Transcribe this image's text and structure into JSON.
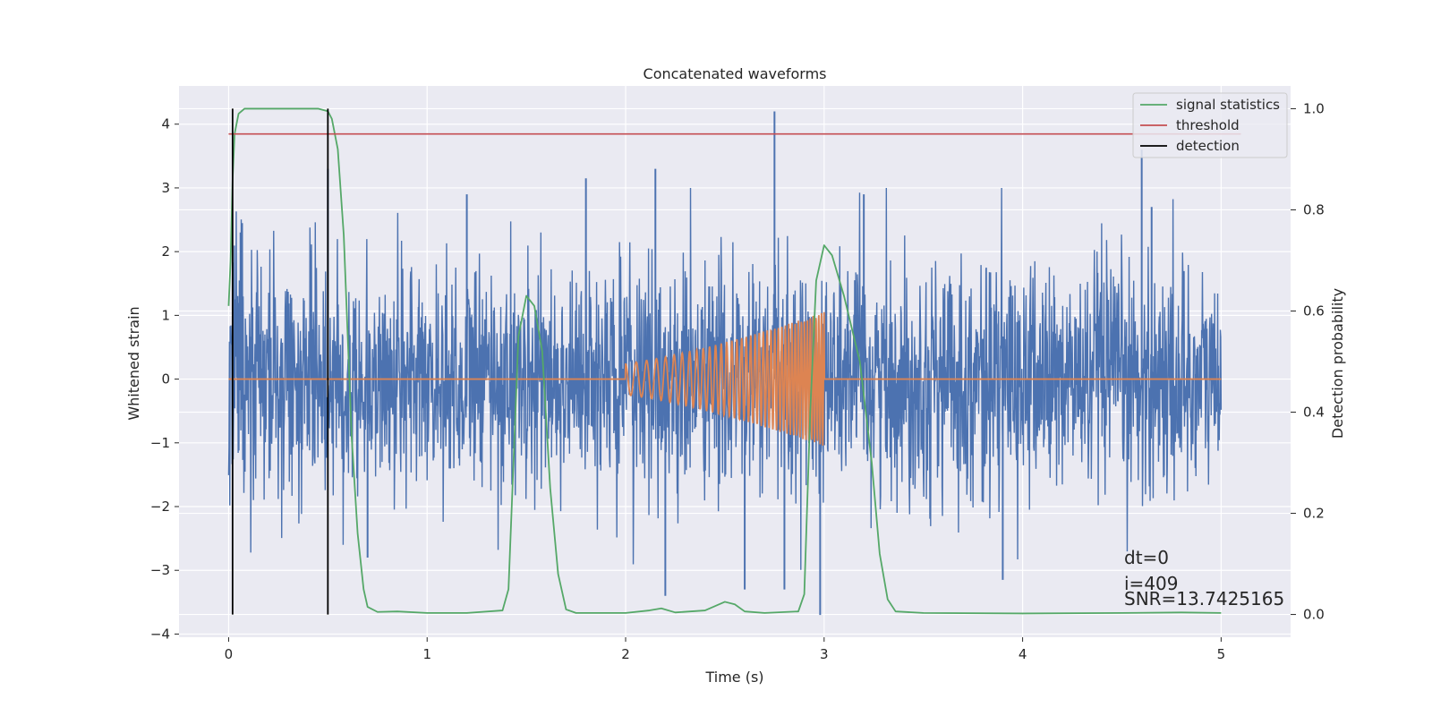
{
  "chart_data": {
    "type": "line",
    "title": "Concatenated waveforms",
    "xlabel": "Time (s)",
    "ylabel": "Whitened strain",
    "ylabel_right": "Detection probability",
    "xlim": [
      -0.25,
      5.35
    ],
    "ylim": [
      -4.05,
      4.6
    ],
    "ylim_right": [
      -0.045,
      1.045
    ],
    "x_ticks": [
      0,
      1,
      2,
      3,
      4,
      5
    ],
    "y_ticks": [
      -4,
      -3,
      -2,
      -1,
      0,
      1,
      2,
      3,
      4
    ],
    "y_ticks_right": [
      0.0,
      0.2,
      0.4,
      0.6,
      0.8,
      1.0
    ],
    "grid": true,
    "legend_position": "top-right",
    "series": [
      {
        "name": "",
        "axis": "left",
        "color": "#4c72b0",
        "kind": "noise",
        "x_range": [
          0,
          5
        ],
        "std": 0.9,
        "spikes": [
          {
            "x": 0.06,
            "y": 2.3
          },
          {
            "x": 0.5,
            "y": 3.3
          },
          {
            "x": 1.2,
            "y": 2.9
          },
          {
            "x": 1.8,
            "y": 3.15
          },
          {
            "x": 2.15,
            "y": 3.3
          },
          {
            "x": 2.75,
            "y": 4.2
          },
          {
            "x": 2.6,
            "y": -3.3
          },
          {
            "x": 2.8,
            "y": -3.3
          },
          {
            "x": 2.98,
            "y": -3.7
          },
          {
            "x": 3.2,
            "y": 2.9
          },
          {
            "x": 3.9,
            "y": -3.15
          },
          {
            "x": 4.6,
            "y": 3.6
          },
          {
            "x": 4.65,
            "y": 2.7
          },
          {
            "x": 0.7,
            "y": -2.8
          },
          {
            "x": 2.2,
            "y": -3.4
          }
        ]
      },
      {
        "name": "",
        "axis": "left",
        "color": "#dd8452",
        "kind": "chirp",
        "x_range": [
          0,
          5
        ],
        "chirp_start": 2.0,
        "chirp_end": 3.0,
        "amp_start": 0.25,
        "amp_end": 1.05,
        "freq_start": 18,
        "freq_end": 75
      },
      {
        "name": "signal statistics",
        "axis": "right",
        "color": "#55a868",
        "points": [
          [
            0.0,
            0.61
          ],
          [
            0.01,
            0.7
          ],
          [
            0.02,
            0.86
          ],
          [
            0.03,
            0.95
          ],
          [
            0.05,
            0.99
          ],
          [
            0.08,
            1.0
          ],
          [
            0.45,
            1.0
          ],
          [
            0.5,
            0.995
          ],
          [
            0.52,
            0.98
          ],
          [
            0.55,
            0.92
          ],
          [
            0.58,
            0.75
          ],
          [
            0.6,
            0.55
          ],
          [
            0.62,
            0.35
          ],
          [
            0.65,
            0.16
          ],
          [
            0.68,
            0.05
          ],
          [
            0.7,
            0.015
          ],
          [
            0.75,
            0.005
          ],
          [
            0.85,
            0.006
          ],
          [
            1.0,
            0.003
          ],
          [
            1.2,
            0.003
          ],
          [
            1.38,
            0.008
          ],
          [
            1.41,
            0.05
          ],
          [
            1.44,
            0.35
          ],
          [
            1.46,
            0.55
          ],
          [
            1.5,
            0.63
          ],
          [
            1.54,
            0.61
          ],
          [
            1.58,
            0.52
          ],
          [
            1.62,
            0.25
          ],
          [
            1.66,
            0.08
          ],
          [
            1.7,
            0.01
          ],
          [
            1.75,
            0.003
          ],
          [
            2.0,
            0.003
          ],
          [
            2.12,
            0.008
          ],
          [
            2.18,
            0.012
          ],
          [
            2.25,
            0.004
          ],
          [
            2.4,
            0.008
          ],
          [
            2.5,
            0.025
          ],
          [
            2.55,
            0.02
          ],
          [
            2.6,
            0.006
          ],
          [
            2.7,
            0.003
          ],
          [
            2.87,
            0.006
          ],
          [
            2.9,
            0.04
          ],
          [
            2.93,
            0.4
          ],
          [
            2.96,
            0.66
          ],
          [
            3.0,
            0.73
          ],
          [
            3.04,
            0.71
          ],
          [
            3.1,
            0.63
          ],
          [
            3.18,
            0.5
          ],
          [
            3.24,
            0.3
          ],
          [
            3.28,
            0.12
          ],
          [
            3.32,
            0.03
          ],
          [
            3.36,
            0.006
          ],
          [
            3.5,
            0.003
          ],
          [
            4.0,
            0.002
          ],
          [
            4.5,
            0.003
          ],
          [
            4.8,
            0.004
          ],
          [
            5.0,
            0.003
          ]
        ]
      },
      {
        "name": "threshold",
        "axis": "right",
        "color": "#c44e52",
        "x": [
          0.0,
          5.1
        ],
        "values": [
          0.95,
          0.95
        ]
      },
      {
        "name": "detection",
        "axis": "right",
        "color": "#000000",
        "vlines": [
          0.02,
          0.5
        ],
        "range": [
          0.0,
          1.0
        ]
      }
    ],
    "annotations": [
      "dt=0",
      "i=409",
      "SNR=13.7425165"
    ]
  }
}
